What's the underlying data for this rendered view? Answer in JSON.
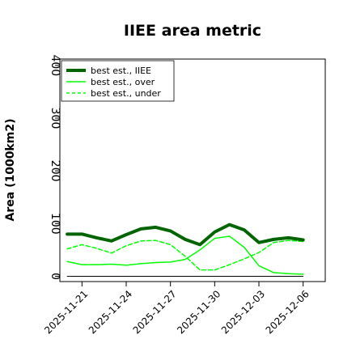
{
  "chart_data": {
    "type": "line",
    "title": "IIEE area metric",
    "xlabel": "",
    "ylabel": "Area (1000km2)",
    "x": [
      "2025-11-20",
      "2025-11-21",
      "2025-11-22",
      "2025-11-23",
      "2025-11-24",
      "2025-11-25",
      "2025-11-26",
      "2025-11-27",
      "2025-11-28",
      "2025-11-29",
      "2025-11-30",
      "2025-12-01",
      "2025-12-02",
      "2025-12-03",
      "2025-12-04",
      "2025-12-05",
      "2025-12-06"
    ],
    "x_ticks": [
      "2025-11-21",
      "2025-11-24",
      "2025-11-27",
      "2025-11-30",
      "2025-12-03",
      "2025-12-06"
    ],
    "x_range": [
      "2025-11-19T12:00",
      "2025-12-07T12:00"
    ],
    "ylim": [
      -10,
      412
    ],
    "y_ticks": [
      0,
      100,
      200,
      300,
      400
    ],
    "grid": false,
    "legend_position": "top-left",
    "series": [
      {
        "name": "best est., IIEE",
        "style": "solid-thick",
        "color": "#006400",
        "values": [
          80,
          80,
          73,
          67,
          79,
          90,
          93,
          86,
          70,
          60,
          84,
          98,
          88,
          64,
          70,
          73,
          69
        ]
      },
      {
        "name": "best est., over",
        "style": "solid",
        "color": "#00ff00",
        "values": [
          28,
          22,
          22,
          23,
          21,
          24,
          26,
          27,
          32,
          50,
          72,
          76,
          55,
          20,
          7,
          5,
          4
        ]
      },
      {
        "name": "best est., under",
        "style": "dashed",
        "color": "#00ff00",
        "values": [
          52,
          60,
          53,
          44,
          58,
          67,
          68,
          60,
          38,
          12,
          12,
          22,
          33,
          45,
          64,
          68,
          66
        ]
      },
      {
        "name": "",
        "style": "solid-thin",
        "color": "#000000",
        "values": [
          0,
          0,
          0,
          0,
          0,
          0,
          0,
          0,
          0,
          0,
          0,
          0,
          0,
          0,
          0,
          0,
          0
        ]
      }
    ]
  }
}
